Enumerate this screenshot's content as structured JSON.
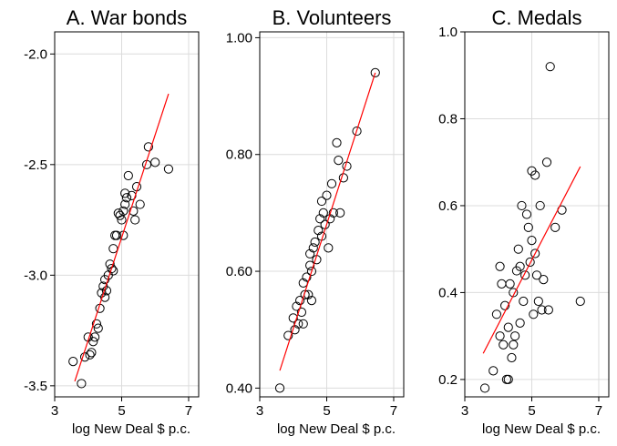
{
  "chart_data": [
    {
      "type": "scatter",
      "title": "A. War bonds",
      "xlabel": "log New Deal $ p.c.",
      "ylabel": "",
      "xlim": [
        3,
        7.3
      ],
      "ylim": [
        -3.55,
        -1.9
      ],
      "xticks": [
        3,
        5,
        7
      ],
      "xtick_labels": [
        "3",
        "5",
        "7"
      ],
      "yticks": [
        -3.5,
        -3.0,
        -2.5,
        -2.0
      ],
      "ytick_labels": [
        "-3.5",
        "-3.0",
        "-2.5",
        "-2.0"
      ],
      "grid": true,
      "fit_line": {
        "x": [
          3.6,
          6.4
        ],
        "y": [
          -3.48,
          -2.18
        ],
        "color": "#ff0000"
      },
      "points": [
        [
          3.55,
          -3.39
        ],
        [
          3.8,
          -3.49
        ],
        [
          3.9,
          -3.37
        ],
        [
          4.0,
          -3.28
        ],
        [
          4.05,
          -3.36
        ],
        [
          4.1,
          -3.35
        ],
        [
          4.15,
          -3.3
        ],
        [
          4.2,
          -3.28
        ],
        [
          4.25,
          -3.22
        ],
        [
          4.3,
          -3.24
        ],
        [
          4.35,
          -3.15
        ],
        [
          4.4,
          -3.08
        ],
        [
          4.45,
          -3.05
        ],
        [
          4.5,
          -3.1
        ],
        [
          4.5,
          -3.02
        ],
        [
          4.55,
          -3.07
        ],
        [
          4.6,
          -3.0
        ],
        [
          4.65,
          -2.95
        ],
        [
          4.7,
          -2.97
        ],
        [
          4.75,
          -2.88
        ],
        [
          4.75,
          -2.98
        ],
        [
          4.8,
          -2.82
        ],
        [
          4.85,
          -2.82
        ],
        [
          4.9,
          -2.72
        ],
        [
          4.95,
          -2.73
        ],
        [
          5.0,
          -2.75
        ],
        [
          5.05,
          -2.71
        ],
        [
          5.05,
          -2.82
        ],
        [
          5.1,
          -2.68
        ],
        [
          5.15,
          -2.65
        ],
        [
          5.1,
          -2.63
        ],
        [
          5.2,
          -2.55
        ],
        [
          5.3,
          -2.64
        ],
        [
          5.35,
          -2.71
        ],
        [
          5.4,
          -2.75
        ],
        [
          5.45,
          -2.6
        ],
        [
          5.55,
          -2.68
        ],
        [
          5.75,
          -2.5
        ],
        [
          5.8,
          -2.42
        ],
        [
          6.0,
          -2.49
        ],
        [
          6.4,
          -2.52
        ]
      ]
    },
    {
      "type": "scatter",
      "title": "B. Volunteers",
      "xlabel": "log New Deal $ p.c.",
      "ylabel": "",
      "xlim": [
        3,
        7.3
      ],
      "ylim": [
        0.385,
        1.01
      ],
      "xticks": [
        3,
        5,
        7
      ],
      "xtick_labels": [
        "3",
        "5",
        "7"
      ],
      "yticks": [
        0.4,
        0.6,
        0.8,
        1.0
      ],
      "ytick_labels": [
        "0.40",
        "0.60",
        "0.80",
        "1.00"
      ],
      "grid": true,
      "fit_line": {
        "x": [
          3.6,
          6.45
        ],
        "y": [
          0.43,
          0.94
        ],
        "color": "#ff0000"
      },
      "points": [
        [
          3.6,
          0.4
        ],
        [
          3.85,
          0.49
        ],
        [
          4.0,
          0.52
        ],
        [
          4.05,
          0.5
        ],
        [
          4.1,
          0.54
        ],
        [
          4.15,
          0.51
        ],
        [
          4.2,
          0.55
        ],
        [
          4.25,
          0.53
        ],
        [
          4.3,
          0.51
        ],
        [
          4.3,
          0.58
        ],
        [
          4.35,
          0.56
        ],
        [
          4.4,
          0.59
        ],
        [
          4.45,
          0.56
        ],
        [
          4.5,
          0.61
        ],
        [
          4.5,
          0.63
        ],
        [
          4.55,
          0.6
        ],
        [
          4.55,
          0.55
        ],
        [
          4.6,
          0.64
        ],
        [
          4.65,
          0.65
        ],
        [
          4.7,
          0.62
        ],
        [
          4.75,
          0.67
        ],
        [
          4.8,
          0.69
        ],
        [
          4.85,
          0.66
        ],
        [
          4.85,
          0.72
        ],
        [
          4.9,
          0.7
        ],
        [
          4.95,
          0.68
        ],
        [
          5.0,
          0.73
        ],
        [
          5.05,
          0.64
        ],
        [
          5.1,
          0.69
        ],
        [
          5.15,
          0.75
        ],
        [
          5.2,
          0.7
        ],
        [
          5.3,
          0.82
        ],
        [
          5.35,
          0.79
        ],
        [
          5.4,
          0.7
        ],
        [
          5.5,
          0.76
        ],
        [
          5.6,
          0.78
        ],
        [
          5.9,
          0.84
        ],
        [
          6.45,
          0.94
        ]
      ]
    },
    {
      "type": "scatter",
      "title": "C. Medals",
      "xlabel": "log New Deal $ p.c.",
      "ylabel": "",
      "xlim": [
        3,
        7.3
      ],
      "ylim": [
        0.16,
        1.0
      ],
      "xticks": [
        3,
        5,
        7
      ],
      "xtick_labels": [
        "3",
        "5",
        "7"
      ],
      "yticks": [
        0.2,
        0.4,
        0.6,
        0.8,
        1.0
      ],
      "ytick_labels": [
        "0.2",
        "0.4",
        "0.6",
        "0.8",
        "1.0"
      ],
      "grid": true,
      "fit_line": {
        "x": [
          3.55,
          6.45
        ],
        "y": [
          0.26,
          0.69
        ],
        "color": "#ff0000"
      },
      "points": [
        [
          3.6,
          0.18
        ],
        [
          3.85,
          0.22
        ],
        [
          3.95,
          0.35
        ],
        [
          4.05,
          0.3
        ],
        [
          4.05,
          0.46
        ],
        [
          4.1,
          0.42
        ],
        [
          4.15,
          0.28
        ],
        [
          4.2,
          0.37
        ],
        [
          4.25,
          0.2
        ],
        [
          4.3,
          0.2
        ],
        [
          4.3,
          0.32
        ],
        [
          4.35,
          0.42
        ],
        [
          4.4,
          0.25
        ],
        [
          4.45,
          0.28
        ],
        [
          4.45,
          0.4
        ],
        [
          4.5,
          0.3
        ],
        [
          4.55,
          0.45
        ],
        [
          4.6,
          0.5
        ],
        [
          4.65,
          0.46
        ],
        [
          4.65,
          0.33
        ],
        [
          4.7,
          0.6
        ],
        [
          4.75,
          0.38
        ],
        [
          4.8,
          0.44
        ],
        [
          4.85,
          0.58
        ],
        [
          4.9,
          0.55
        ],
        [
          4.95,
          0.47
        ],
        [
          5.0,
          0.68
        ],
        [
          5.0,
          0.52
        ],
        [
          5.05,
          0.35
        ],
        [
          5.1,
          0.49
        ],
        [
          5.1,
          0.67
        ],
        [
          5.15,
          0.44
        ],
        [
          5.2,
          0.38
        ],
        [
          5.25,
          0.6
        ],
        [
          5.3,
          0.36
        ],
        [
          5.35,
          0.43
        ],
        [
          5.45,
          0.7
        ],
        [
          5.5,
          0.36
        ],
        [
          5.55,
          0.92
        ],
        [
          5.7,
          0.55
        ],
        [
          5.9,
          0.59
        ],
        [
          6.45,
          0.38
        ]
      ]
    }
  ]
}
